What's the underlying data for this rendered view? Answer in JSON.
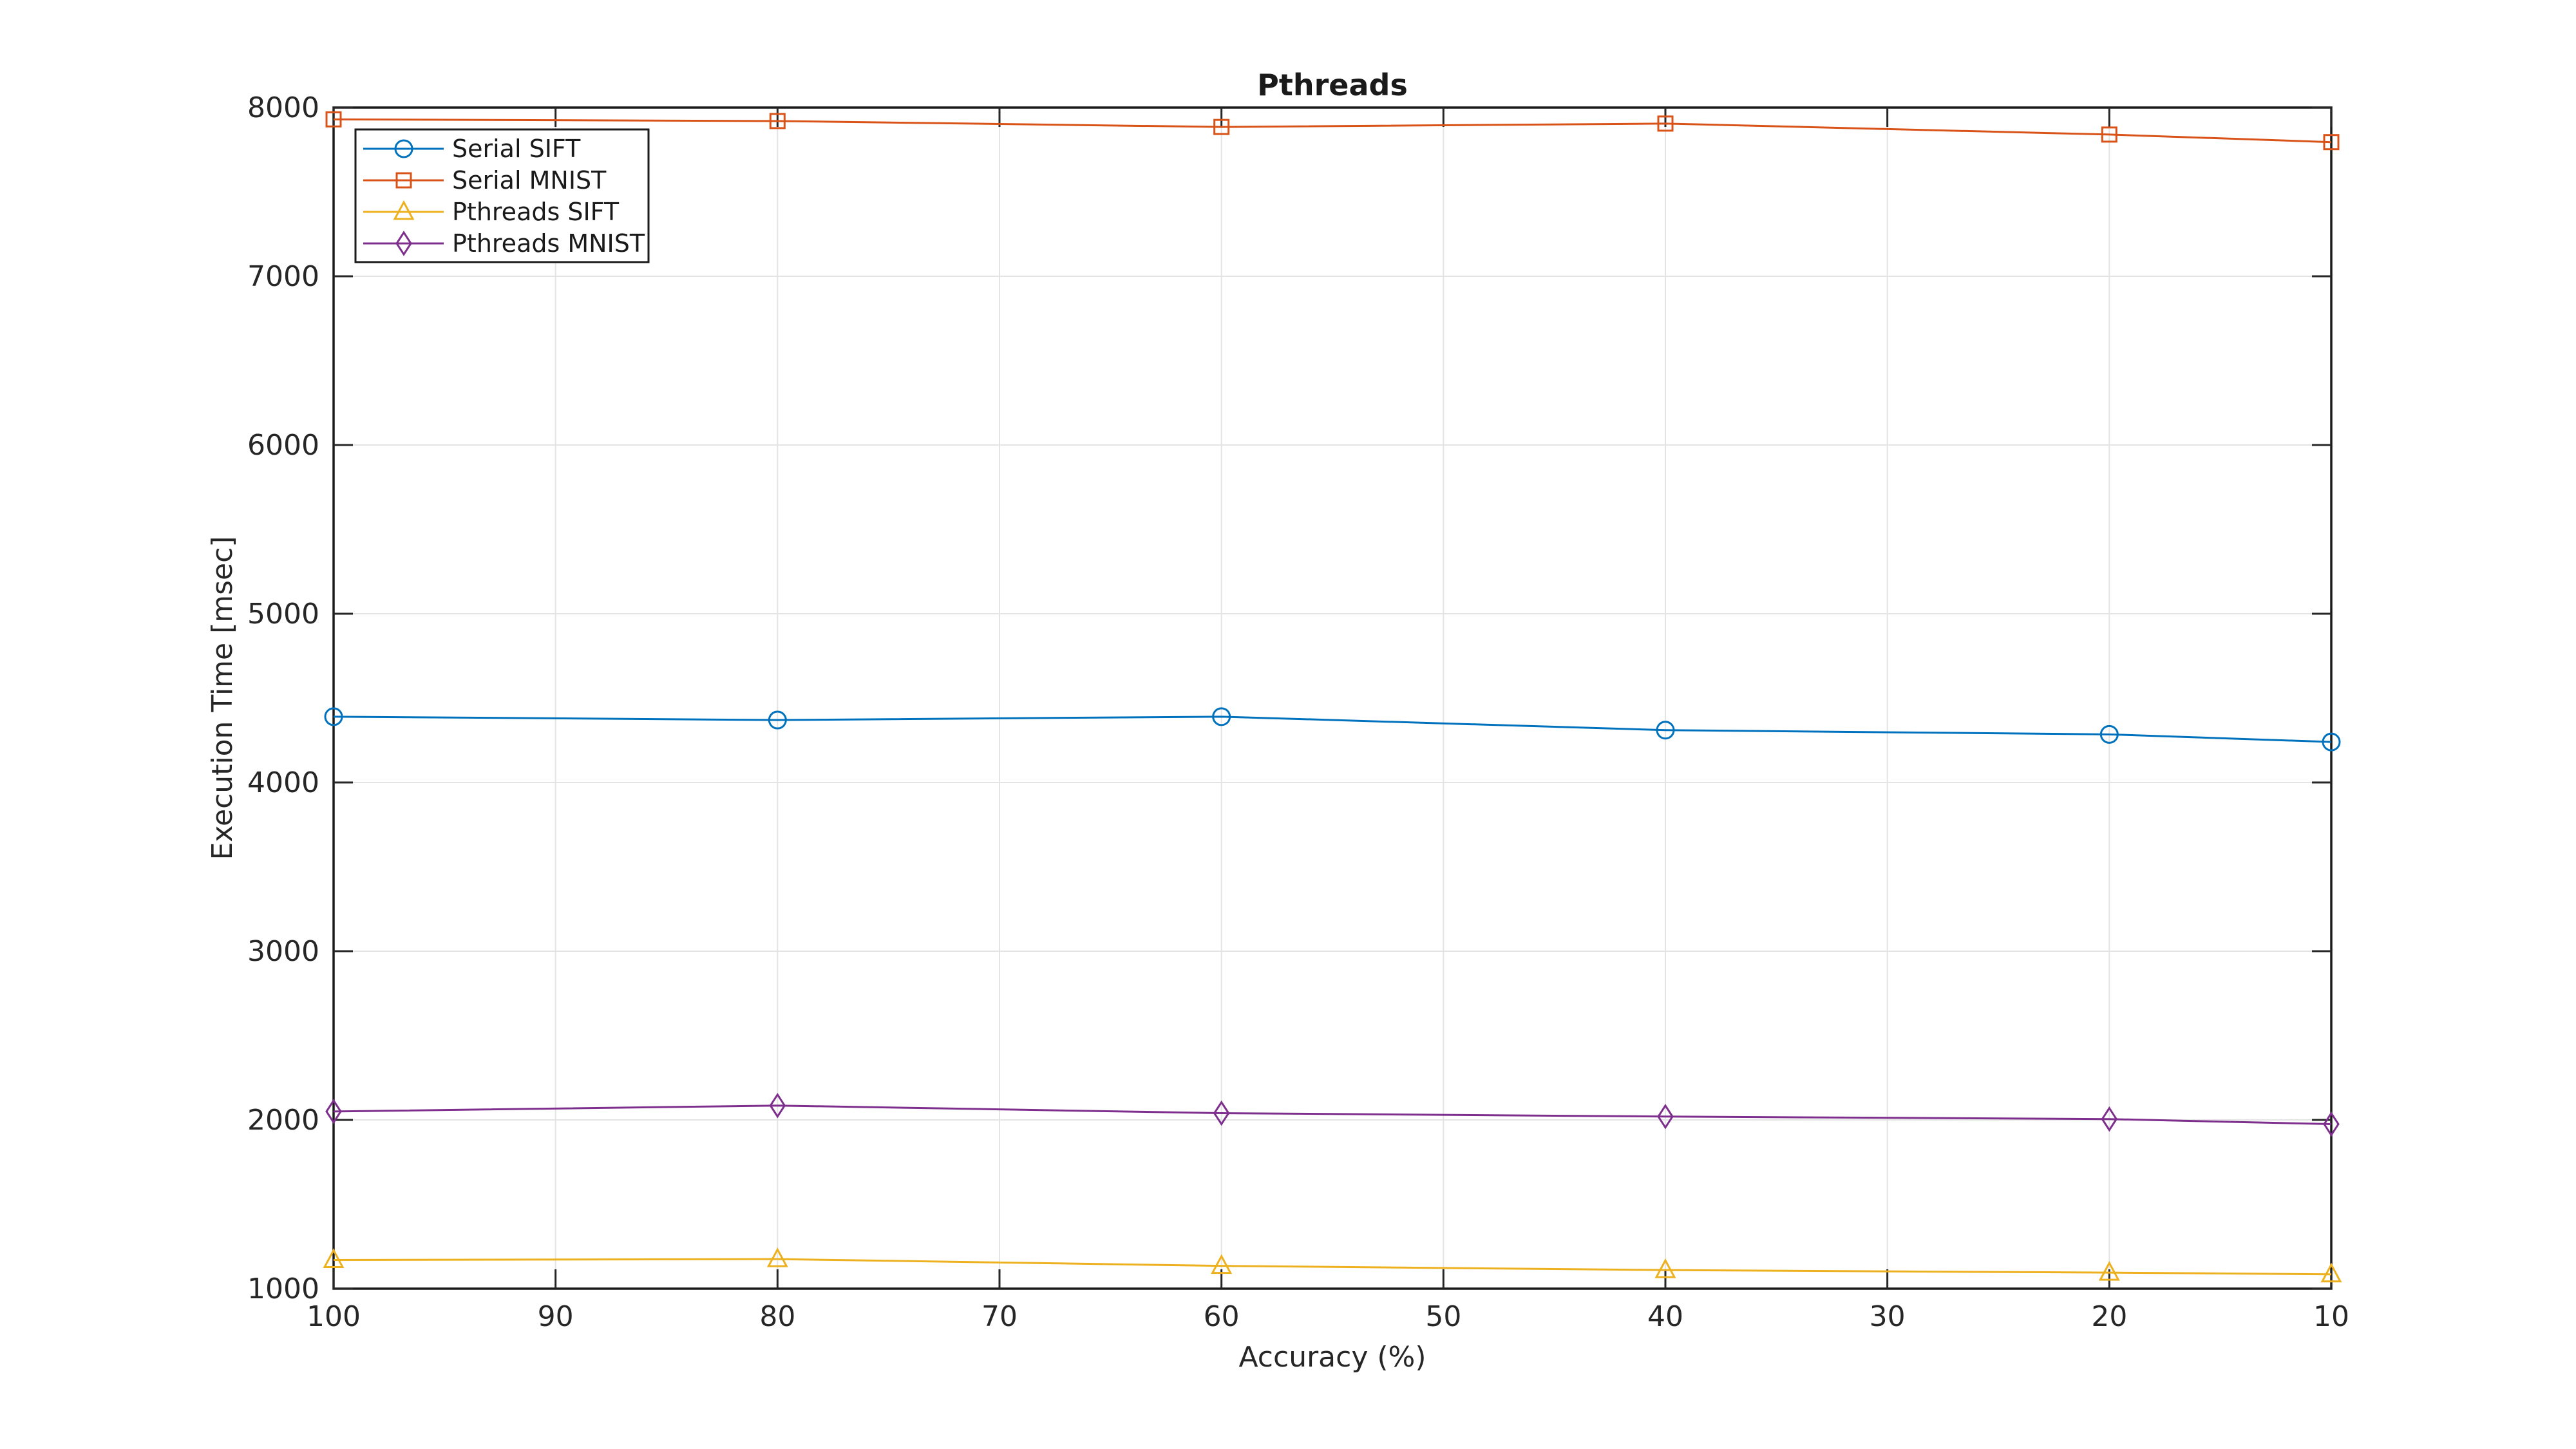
{
  "figure": {
    "title": "Pthreads",
    "background_color": "#ffffff"
  },
  "axes": {
    "xlabel": "Accuracy (%)",
    "ylabel": "Execution Time [msec]",
    "x_ticks": [
      100,
      90,
      80,
      70,
      60,
      50,
      40,
      30,
      20,
      10
    ],
    "y_ticks": [
      1000,
      2000,
      3000,
      4000,
      5000,
      6000,
      7000,
      8000
    ],
    "x_direction": "reversed",
    "xlim": [
      100,
      10
    ],
    "ylim": [
      1000,
      8000
    ],
    "grid": "on",
    "axis_color": "#262626",
    "grid_color": "#e4e4e4",
    "box": "on"
  },
  "legend": {
    "position": "top-left",
    "border_color": "#1a1a1a",
    "fill_color": "#ffffff"
  },
  "chart_data": {
    "type": "line",
    "title": "Pthreads",
    "xlabel": "Accuracy (%)",
    "ylabel": "Execution Time [msec]",
    "x": [
      100,
      80,
      60,
      40,
      20,
      10
    ],
    "series": [
      {
        "name": "Serial SIFT",
        "color": "#0072BD",
        "marker": "circle",
        "values": [
          4390,
          4370,
          4390,
          4310,
          4285,
          4240
        ]
      },
      {
        "name": "Serial MNIST",
        "color": "#D95319",
        "marker": "square",
        "values": [
          7930,
          7920,
          7885,
          7905,
          7840,
          7795
        ]
      },
      {
        "name": "Pthreads SIFT",
        "color": "#EDB120",
        "marker": "triangle-up",
        "values": [
          1170,
          1175,
          1135,
          1110,
          1095,
          1085
        ]
      },
      {
        "name": "Pthreads MNIST",
        "color": "#7E2F8E",
        "marker": "diamond",
        "values": [
          2050,
          2085,
          2040,
          2020,
          2005,
          1975
        ]
      }
    ],
    "xlim": [
      100,
      10
    ],
    "ylim": [
      1000,
      8000
    ],
    "x_axis_reversed": true,
    "grid": true,
    "legend_position": "top-left"
  }
}
